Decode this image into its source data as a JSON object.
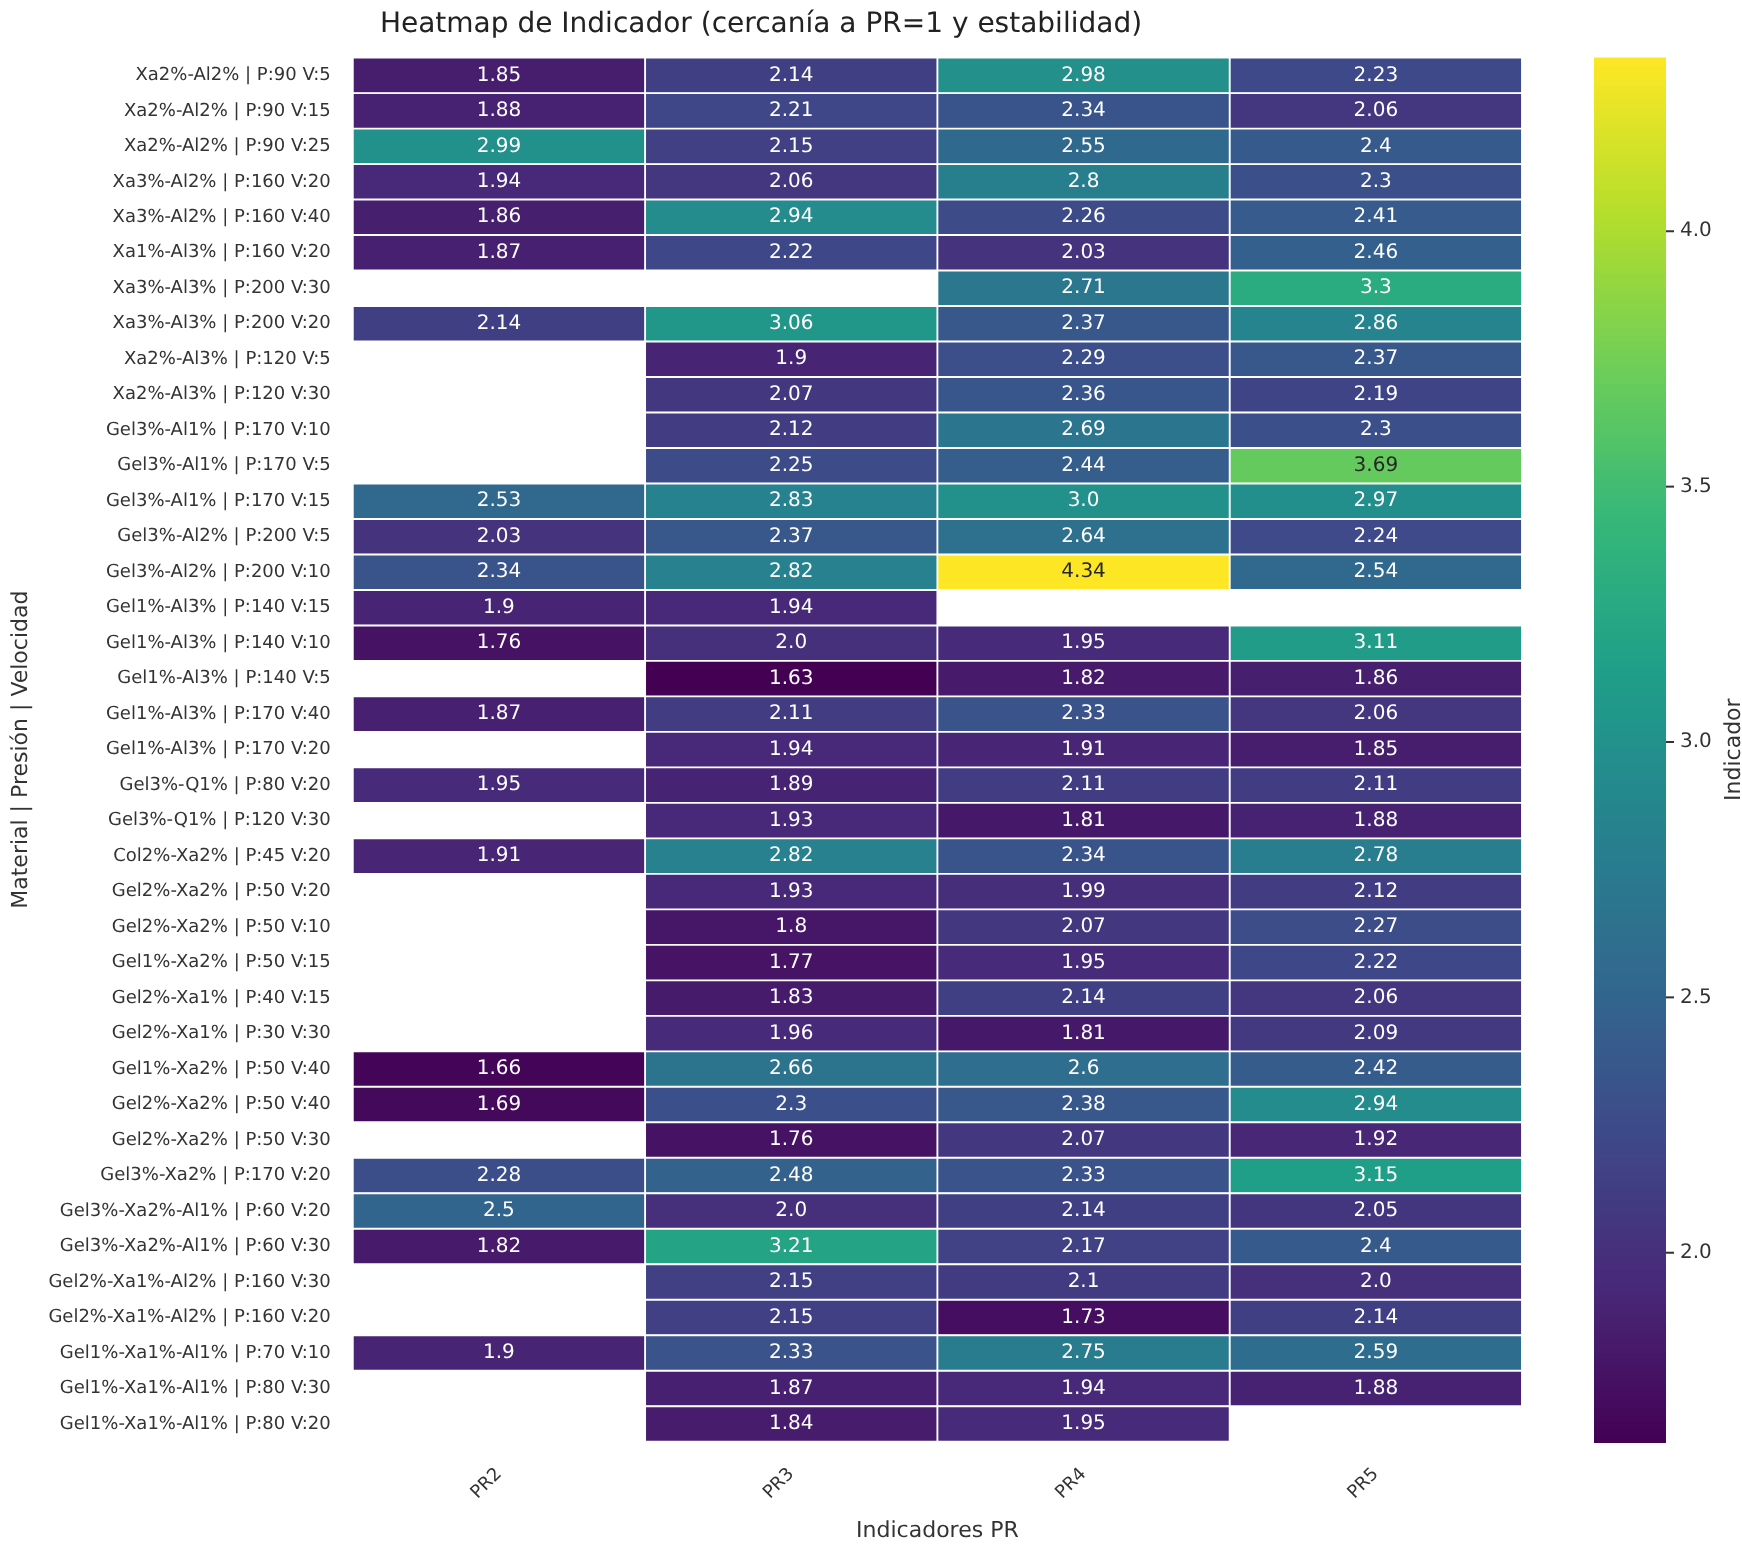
{
  "chart_data": {
    "type": "heatmap",
    "title": "Heatmap de Indicador (cercanía a PR=1 y estabilidad)",
    "xlabel": "Indicadores PR",
    "ylabel": "Material | Presión | Velocidad",
    "clabel": "Indicador",
    "categories": [
      "PR2",
      "PR3",
      "PR4",
      "PR5"
    ],
    "y_categories": [
      "Xa2%-Al2% | P:90 V:5",
      "Xa2%-Al2% | P:90 V:15",
      "Xa2%-Al2% | P:90 V:25",
      "Xa3%-Al2% | P:160 V:20",
      "Xa3%-Al2% | P:160 V:40",
      "Xa1%-Al3% | P:160 V:20",
      "Xa3%-Al3% | P:200 V:30",
      "Xa3%-Al3% | P:200 V:20",
      "Xa2%-Al3% | P:120 V:5",
      "Xa2%-Al3% | P:120 V:30",
      "Gel3%-Al1% | P:170 V:10",
      "Gel3%-Al1% | P:170 V:5",
      "Gel3%-Al1% | P:170 V:15",
      "Gel3%-Al2% | P:200 V:5",
      "Gel3%-Al2% | P:200 V:10",
      "Gel1%-Al3% | P:140 V:15",
      "Gel1%-Al3% | P:140 V:10",
      "Gel1%-Al3% | P:140 V:5",
      "Gel1%-Al3% | P:170 V:40",
      "Gel1%-Al3% | P:170 V:20",
      "Gel3%-Q1% | P:80 V:20",
      "Gel3%-Q1% | P:120 V:30",
      "Col2%-Xa2% | P:45 V:20",
      "Gel2%-Xa2% | P:50 V:20",
      "Gel2%-Xa2% | P:50 V:10",
      "Gel1%-Xa2% | P:50 V:15",
      "Gel2%-Xa1% | P:40 V:15",
      "Gel2%-Xa1% | P:30 V:30",
      "Gel1%-Xa2% | P:50 V:40",
      "Gel2%-Xa2% | P:50 V:40",
      "Gel2%-Xa2% | P:50 V:30",
      "Gel3%-Xa2% | P:170 V:20",
      "Gel3%-Xa2%-Al1% | P:60 V:20",
      "Gel3%-Xa2%-Al1% | P:60 V:30",
      "Gel2%-Xa1%-Al2% | P:160 V:30",
      "Gel2%-Xa1%-Al2% | P:160 V:20",
      "Gel1%-Xa1%-Al1% | P:70 V:10",
      "Gel1%-Xa1%-Al1% | P:80 V:30",
      "Gel1%-Xa1%-Al1% | P:80 V:20"
    ],
    "cells": [
      [
        1.85,
        2.14,
        2.98,
        2.23
      ],
      [
        1.88,
        2.21,
        2.34,
        2.06
      ],
      [
        2.99,
        2.15,
        2.55,
        2.4
      ],
      [
        1.94,
        2.06,
        2.8,
        2.3
      ],
      [
        1.86,
        2.94,
        2.26,
        2.41
      ],
      [
        1.87,
        2.22,
        2.03,
        2.46
      ],
      [
        null,
        null,
        2.71,
        3.3
      ],
      [
        2.14,
        3.06,
        2.37,
        2.86
      ],
      [
        null,
        1.9,
        2.29,
        2.37
      ],
      [
        null,
        2.07,
        2.36,
        2.19
      ],
      [
        null,
        2.12,
        2.69,
        2.3
      ],
      [
        null,
        2.25,
        2.44,
        3.69
      ],
      [
        2.53,
        2.83,
        3.0,
        2.97
      ],
      [
        2.03,
        2.37,
        2.64,
        2.24
      ],
      [
        2.34,
        2.82,
        4.34,
        2.54
      ],
      [
        1.9,
        1.94,
        null,
        null
      ],
      [
        1.76,
        2.0,
        1.95,
        3.11
      ],
      [
        null,
        1.63,
        1.82,
        1.86
      ],
      [
        1.87,
        2.11,
        2.33,
        2.06
      ],
      [
        null,
        1.94,
        1.91,
        1.85
      ],
      [
        1.95,
        1.89,
        2.11,
        2.11
      ],
      [
        null,
        1.93,
        1.81,
        1.88
      ],
      [
        1.91,
        2.82,
        2.34,
        2.78
      ],
      [
        null,
        1.93,
        1.99,
        2.12
      ],
      [
        null,
        1.8,
        2.07,
        2.27
      ],
      [
        null,
        1.77,
        1.95,
        2.22
      ],
      [
        null,
        1.83,
        2.14,
        2.06
      ],
      [
        null,
        1.96,
        1.81,
        2.09
      ],
      [
        1.66,
        2.66,
        2.6,
        2.42
      ],
      [
        1.69,
        2.3,
        2.38,
        2.94
      ],
      [
        null,
        1.76,
        2.07,
        1.92
      ],
      [
        2.28,
        2.48,
        2.33,
        3.15
      ],
      [
        2.5,
        2.0,
        2.14,
        2.05
      ],
      [
        1.82,
        3.21,
        2.17,
        2.4
      ],
      [
        null,
        2.15,
        2.1,
        2.0
      ],
      [
        null,
        2.15,
        1.73,
        2.14
      ],
      [
        1.9,
        2.33,
        2.75,
        2.59
      ],
      [
        null,
        1.87,
        1.94,
        1.88
      ],
      [
        null,
        1.84,
        1.95,
        null
      ]
    ],
    "cell_labels": [
      [
        "1.85",
        "2.14",
        "2.98",
        "2.23"
      ],
      [
        "1.88",
        "2.21",
        "2.34",
        "2.06"
      ],
      [
        "2.99",
        "2.15",
        "2.55",
        "2.4"
      ],
      [
        "1.94",
        "2.06",
        "2.8",
        "2.3"
      ],
      [
        "1.86",
        "2.94",
        "2.26",
        "2.41"
      ],
      [
        "1.87",
        "2.22",
        "2.03",
        "2.46"
      ],
      [
        null,
        null,
        "2.71",
        "3.3"
      ],
      [
        "2.14",
        "3.06",
        "2.37",
        "2.86"
      ],
      [
        null,
        "1.9",
        "2.29",
        "2.37"
      ],
      [
        null,
        "2.07",
        "2.36",
        "2.19"
      ],
      [
        null,
        "2.12",
        "2.69",
        "2.3"
      ],
      [
        null,
        "2.25",
        "2.44",
        "3.69"
      ],
      [
        "2.53",
        "2.83",
        "3.0",
        "2.97"
      ],
      [
        "2.03",
        "2.37",
        "2.64",
        "2.24"
      ],
      [
        "2.34",
        "2.82",
        "4.34",
        "2.54"
      ],
      [
        "1.9",
        "1.94",
        null,
        null
      ],
      [
        "1.76",
        "2.0",
        "1.95",
        "3.11"
      ],
      [
        null,
        "1.63",
        "1.82",
        "1.86"
      ],
      [
        "1.87",
        "2.11",
        "2.33",
        "2.06"
      ],
      [
        null,
        "1.94",
        "1.91",
        "1.85"
      ],
      [
        "1.95",
        "1.89",
        "2.11",
        "2.11"
      ],
      [
        null,
        "1.93",
        "1.81",
        "1.88"
      ],
      [
        "1.91",
        "2.82",
        "2.34",
        "2.78"
      ],
      [
        null,
        "1.93",
        "1.99",
        "2.12"
      ],
      [
        null,
        "1.8",
        "2.07",
        "2.27"
      ],
      [
        null,
        "1.77",
        "1.95",
        "2.22"
      ],
      [
        null,
        "1.83",
        "2.14",
        "2.06"
      ],
      [
        null,
        "1.96",
        "1.81",
        "2.09"
      ],
      [
        "1.66",
        "2.66",
        "2.6",
        "2.42"
      ],
      [
        "1.69",
        "2.3",
        "2.38",
        "2.94"
      ],
      [
        null,
        "1.76",
        "2.07",
        "1.92"
      ],
      [
        "2.28",
        "2.48",
        "2.33",
        "3.15"
      ],
      [
        "2.5",
        "2.0",
        "2.14",
        "2.05"
      ],
      [
        "1.82",
        "3.21",
        "2.17",
        "2.4"
      ],
      [
        null,
        "2.15",
        "2.1",
        "2.0"
      ],
      [
        null,
        "2.15",
        "1.73",
        "2.14"
      ],
      [
        "1.9",
        "2.33",
        "2.75",
        "2.59"
      ],
      [
        null,
        "1.87",
        "1.94",
        "1.88"
      ],
      [
        null,
        "1.84",
        "1.95",
        null
      ]
    ],
    "clim": [
      1.63,
      4.34
    ],
    "cticks": [
      {
        "value": 2,
        "label": "2.0"
      },
      2.5,
      {
        "value": 3,
        "label": "3.0"
      },
      3.5,
      {
        "value": 4,
        "label": "4.0"
      }
    ]
  }
}
